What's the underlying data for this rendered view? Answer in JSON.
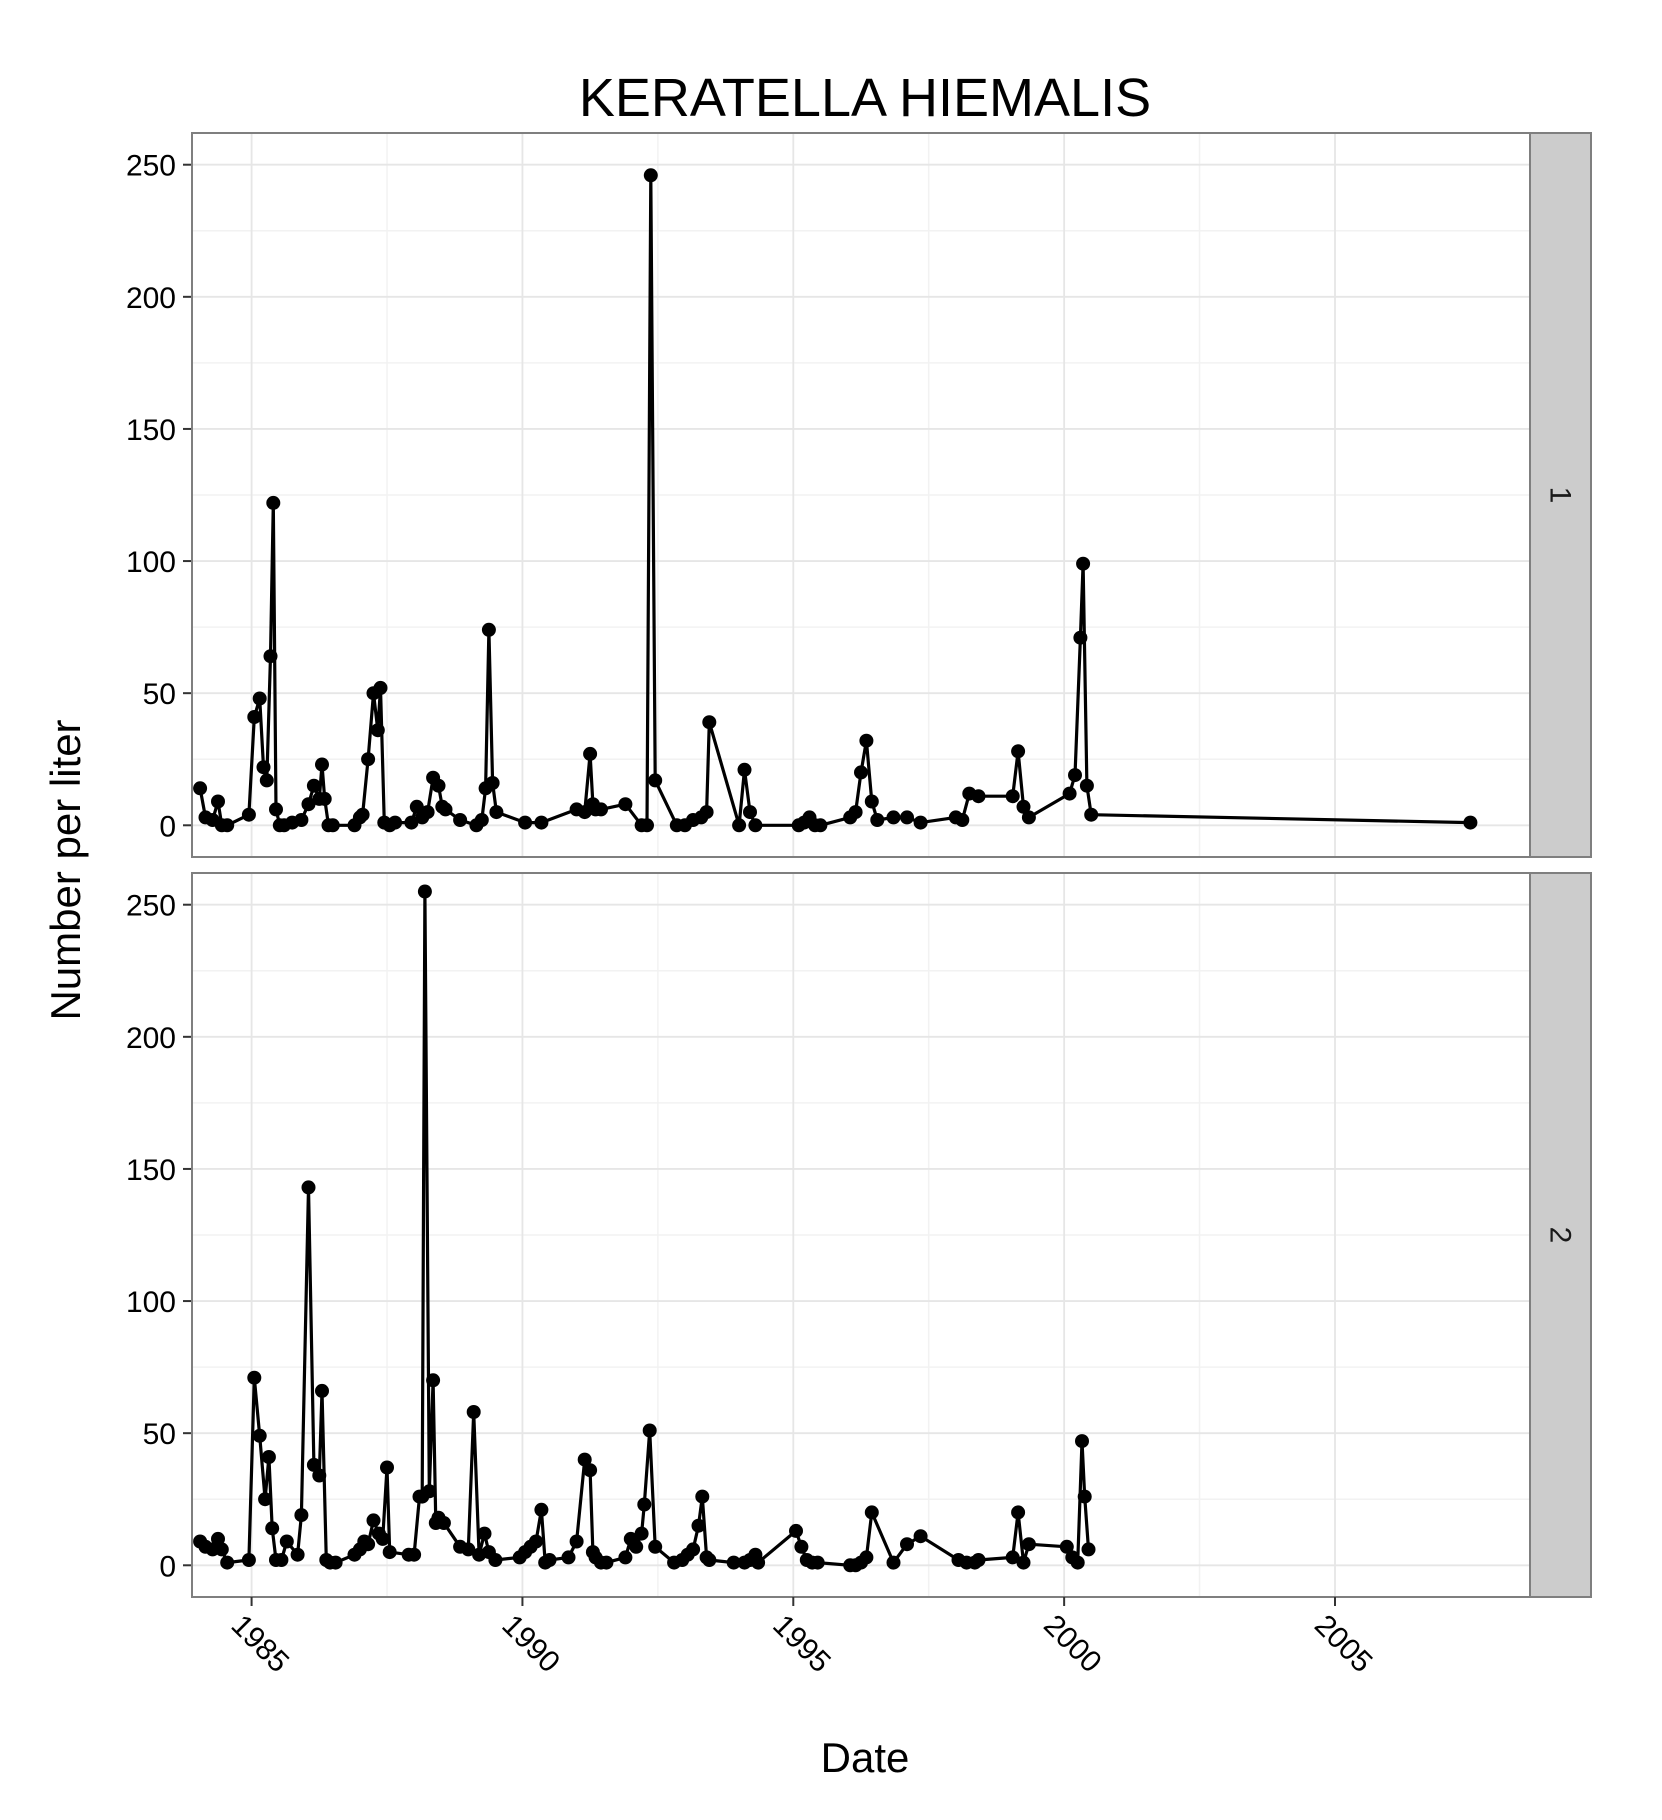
{
  "chart_data": {
    "type": "line",
    "title": "KERATELLA HIEMALIS",
    "xlabel": "Date",
    "ylabel": "Number per liter",
    "x_ticks": [
      "1985",
      "1990",
      "1995",
      "2000",
      "2005"
    ],
    "y_ticks": [
      "0",
      "50",
      "100",
      "150",
      "200",
      "250"
    ],
    "xlim": [
      1983.9,
      2008.6
    ],
    "ylim": [
      -12,
      262
    ],
    "grid": true,
    "markers": true,
    "facets": [
      {
        "label": "1",
        "x": [
          1984.05,
          1984.15,
          1984.28,
          1984.38,
          1984.45,
          1984.55,
          1984.95,
          1985.05,
          1985.15,
          1985.22,
          1985.28,
          1985.35,
          1985.4,
          1985.45,
          1985.52,
          1985.6,
          1985.75,
          1985.92,
          1986.05,
          1986.15,
          1986.25,
          1986.3,
          1986.35,
          1986.42,
          1986.5,
          1986.9,
          1987.0,
          1987.05,
          1987.15,
          1987.25,
          1987.33,
          1987.38,
          1987.45,
          1987.55,
          1987.65,
          1987.95,
          1988.05,
          1988.15,
          1988.25,
          1988.35,
          1988.45,
          1988.52,
          1988.58,
          1988.85,
          1989.15,
          1989.25,
          1989.32,
          1989.38,
          1989.45,
          1989.52,
          1990.05,
          1990.35,
          1991.0,
          1991.15,
          1991.25,
          1991.3,
          1991.35,
          1991.45,
          1991.9,
          1992.2,
          1992.3,
          1992.37,
          1992.45,
          1992.85,
          1993.0,
          1993.15,
          1993.3,
          1993.4,
          1993.45,
          1994.0,
          1994.1,
          1994.2,
          1994.3,
          1995.1,
          1995.2,
          1995.3,
          1995.4,
          1995.5,
          1996.05,
          1996.15,
          1996.25,
          1996.35,
          1996.45,
          1996.55,
          1996.85,
          1997.1,
          1997.35,
          1998.0,
          1998.12,
          1998.25,
          1998.42,
          1999.05,
          1999.15,
          1999.25,
          1999.35,
          2000.1,
          2000.2,
          2000.3,
          2000.35,
          2000.42,
          2000.5,
          2007.5
        ],
        "y": [
          14,
          3,
          2,
          9,
          0,
          0,
          4,
          41,
          48,
          22,
          17,
          64,
          122,
          6,
          0,
          0,
          1,
          2,
          8,
          15,
          10,
          23,
          10,
          0,
          0,
          0,
          3,
          4,
          25,
          50,
          36,
          52,
          1,
          0,
          1,
          1,
          7,
          3,
          5,
          18,
          15,
          7,
          6,
          2,
          0,
          2,
          14,
          74,
          16,
          5,
          1,
          1,
          6,
          5,
          27,
          8,
          6,
          6,
          8,
          0,
          0,
          246,
          17,
          0,
          0,
          2,
          3,
          5,
          39,
          0,
          21,
          5,
          0,
          0,
          1,
          3,
          0,
          0,
          3,
          5,
          20,
          32,
          9,
          2,
          3,
          3,
          1,
          3,
          2,
          12,
          11,
          11,
          28,
          7,
          3,
          12,
          19,
          71,
          99,
          15,
          4,
          1
        ]
      },
      {
        "label": "2",
        "x": [
          1984.05,
          1984.15,
          1984.28,
          1984.38,
          1984.45,
          1984.55,
          1984.95,
          1985.05,
          1985.15,
          1985.25,
          1985.32,
          1985.38,
          1985.45,
          1985.55,
          1985.65,
          1985.85,
          1985.92,
          1986.05,
          1986.15,
          1986.25,
          1986.3,
          1986.38,
          1986.45,
          1986.55,
          1986.9,
          1987.0,
          1987.08,
          1987.15,
          1987.25,
          1987.35,
          1987.42,
          1987.5,
          1987.55,
          1987.9,
          1988.0,
          1988.1,
          1988.15,
          1988.2,
          1988.28,
          1988.35,
          1988.4,
          1988.45,
          1988.55,
          1988.85,
          1989.0,
          1989.1,
          1989.2,
          1989.3,
          1989.38,
          1989.5,
          1989.95,
          1990.05,
          1990.15,
          1990.25,
          1990.35,
          1990.42,
          1990.5,
          1990.85,
          1991.0,
          1991.15,
          1991.25,
          1991.3,
          1991.35,
          1991.45,
          1991.55,
          1991.9,
          1992.0,
          1992.1,
          1992.2,
          1992.25,
          1992.35,
          1992.45,
          1992.8,
          1992.95,
          1993.05,
          1993.15,
          1993.25,
          1993.32,
          1993.4,
          1993.45,
          1993.9,
          1994.1,
          1994.2,
          1994.3,
          1994.35,
          1995.05,
          1995.15,
          1995.25,
          1995.35,
          1995.45,
          1996.05,
          1996.15,
          1996.25,
          1996.35,
          1996.45,
          1996.85,
          1997.1,
          1997.35,
          1998.05,
          1998.2,
          1998.35,
          1998.42,
          1999.05,
          1999.15,
          1999.25,
          1999.35,
          2000.05,
          2000.15,
          2000.25,
          2000.33,
          2000.38,
          2000.45
        ],
        "y": [
          9,
          7,
          6,
          10,
          6,
          1,
          2,
          71,
          49,
          25,
          41,
          14,
          2,
          2,
          9,
          4,
          19,
          143,
          38,
          34,
          66,
          2,
          1,
          1,
          4,
          6,
          9,
          8,
          17,
          12,
          10,
          37,
          5,
          4,
          4,
          26,
          26,
          255,
          28,
          70,
          16,
          18,
          16,
          7,
          6,
          58,
          4,
          12,
          5,
          2,
          3,
          5,
          7,
          9,
          21,
          1,
          2,
          3,
          9,
          40,
          36,
          5,
          3,
          1,
          1,
          3,
          10,
          7,
          12,
          23,
          51,
          7,
          1,
          2,
          4,
          6,
          15,
          26,
          3,
          2,
          1,
          1,
          2,
          4,
          1,
          13,
          7,
          2,
          1,
          1,
          0,
          0,
          1,
          3,
          20,
          1,
          8,
          11,
          2,
          1,
          1,
          2,
          3,
          20,
          1,
          8,
          7,
          3,
          1,
          47,
          26,
          6
        ]
      }
    ]
  }
}
